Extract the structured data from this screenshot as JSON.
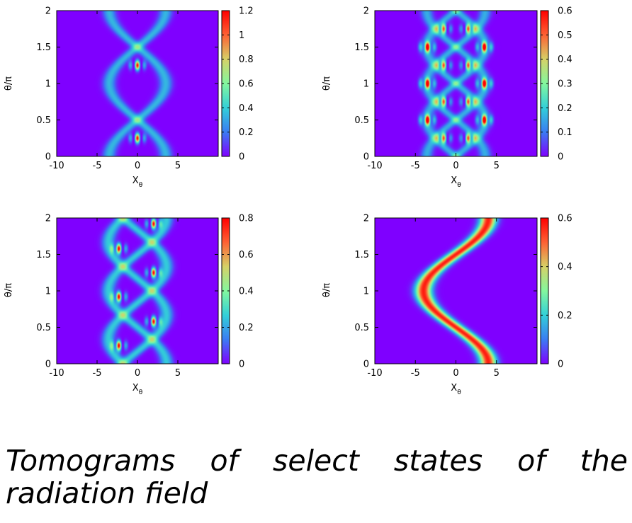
{
  "caption": "Tomograms of select states of the radiation field",
  "chart_data": [
    {
      "type": "heatmap",
      "title": "",
      "xlabel": "X",
      "xlabel_sub": "θ",
      "ylabel": "θ/π",
      "xlim": [
        -10,
        10
      ],
      "ylim": [
        0,
        2
      ],
      "xticks": [
        -10,
        -5,
        0,
        5
      ],
      "yticks": [
        0,
        0.5,
        1,
        1.5,
        2
      ],
      "colorbar": {
        "min": 0,
        "max": 1.2,
        "ticks": [
          0,
          0.2,
          0.4,
          0.6,
          0.8,
          1,
          1.2
        ]
      },
      "colormap": [
        "#7f00ff",
        "#3a7cf3",
        "#33d0d8",
        "#83f79e",
        "#d6d167",
        "#fd6134",
        "#ff0000"
      ],
      "pattern": {
        "kind": "cat",
        "amplitude": 3.5,
        "sigma": 0.55,
        "components": 2,
        "intensity": 0.34,
        "peaks": [
          {
            "x": 0,
            "y": 0.25,
            "value": 1.2
          },
          {
            "x": 0,
            "y": 1.25,
            "value": 1.2
          }
        ]
      }
    },
    {
      "type": "heatmap",
      "title": "",
      "xlabel": "X",
      "xlabel_sub": "θ",
      "ylabel": "θ/π",
      "xlim": [
        -10,
        10
      ],
      "ylim": [
        0,
        2
      ],
      "xticks": [
        -10,
        -5,
        0,
        5
      ],
      "yticks": [
        0,
        0.5,
        1,
        1.5,
        2
      ],
      "colorbar": {
        "min": 0,
        "max": 0.6,
        "ticks": [
          0,
          0.1,
          0.2,
          0.3,
          0.4,
          0.5,
          0.6
        ]
      },
      "colormap": [
        "#7f00ff",
        "#3a7cf3",
        "#33d0d8",
        "#83f79e",
        "#d6d167",
        "#fd6134",
        "#ff0000"
      ],
      "pattern": {
        "kind": "multi",
        "amplitude": 3.6,
        "sigma": 0.5,
        "components": 4,
        "intensity": 0.16,
        "peaks": [
          {
            "x": -3.5,
            "y": 0.5,
            "value": 0.6
          },
          {
            "x": 3.5,
            "y": 0.5,
            "value": 0.6
          },
          {
            "x": -3.5,
            "y": 1.0,
            "value": 0.6
          },
          {
            "x": 3.5,
            "y": 1.0,
            "value": 0.6
          },
          {
            "x": -3.5,
            "y": 1.5,
            "value": 0.6
          },
          {
            "x": 3.5,
            "y": 1.5,
            "value": 0.6
          },
          {
            "x": -1.5,
            "y": 0.25,
            "value": 0.5
          },
          {
            "x": 1.5,
            "y": 0.25,
            "value": 0.5
          },
          {
            "x": -1.5,
            "y": 0.75,
            "value": 0.5
          },
          {
            "x": 1.5,
            "y": 0.75,
            "value": 0.5
          },
          {
            "x": -1.5,
            "y": 1.25,
            "value": 0.5
          },
          {
            "x": 1.5,
            "y": 1.25,
            "value": 0.5
          },
          {
            "x": -1.5,
            "y": 1.75,
            "value": 0.5
          },
          {
            "x": 1.5,
            "y": 1.75,
            "value": 0.5
          }
        ]
      }
    },
    {
      "type": "heatmap",
      "title": "",
      "xlabel": "X",
      "xlabel_sub": "θ",
      "ylabel": "θ/π",
      "xlim": [
        -10,
        10
      ],
      "ylim": [
        0,
        2
      ],
      "xticks": [
        -10,
        -5,
        0,
        5
      ],
      "yticks": [
        0,
        0.5,
        1,
        1.5,
        2
      ],
      "colorbar": {
        "min": 0,
        "max": 0.8,
        "ticks": [
          0,
          0.2,
          0.4,
          0.6,
          0.8
        ]
      },
      "colormap": [
        "#7f00ff",
        "#3a7cf3",
        "#33d0d8",
        "#83f79e",
        "#d6d167",
        "#fd6134",
        "#ff0000"
      ],
      "pattern": {
        "kind": "multi3",
        "amplitude": 3.6,
        "sigma": 0.55,
        "components": 3,
        "intensity": 0.26,
        "peaks": [
          {
            "x": -2.3,
            "y": 0.25,
            "value": 0.8
          },
          {
            "x": 2.0,
            "y": 0.58,
            "value": 0.8
          },
          {
            "x": -2.3,
            "y": 0.92,
            "value": 0.8
          },
          {
            "x": 2.0,
            "y": 1.25,
            "value": 0.8
          },
          {
            "x": -2.3,
            "y": 1.58,
            "value": 0.8
          },
          {
            "x": 2.0,
            "y": 1.92,
            "value": 0.8
          }
        ]
      }
    },
    {
      "type": "heatmap",
      "title": "",
      "xlabel": "X",
      "xlabel_sub": "θ",
      "ylabel": "θ/π",
      "xlim": [
        -10,
        10
      ],
      "ylim": [
        0,
        2
      ],
      "xticks": [
        -10,
        -5,
        0,
        5
      ],
      "yticks": [
        0,
        0.5,
        1,
        1.5,
        2
      ],
      "colorbar": {
        "min": 0,
        "max": 0.6,
        "ticks": [
          0,
          0.2,
          0.4,
          0.6
        ]
      },
      "colormap": [
        "#7f00ff",
        "#3a7cf3",
        "#33d0d8",
        "#83f79e",
        "#d6d167",
        "#fd6134",
        "#ff0000"
      ],
      "pattern": {
        "kind": "coherent",
        "amplitude": 4,
        "sigma": 0.7,
        "components": 1,
        "intensity": 0.57,
        "peaks": []
      }
    }
  ]
}
